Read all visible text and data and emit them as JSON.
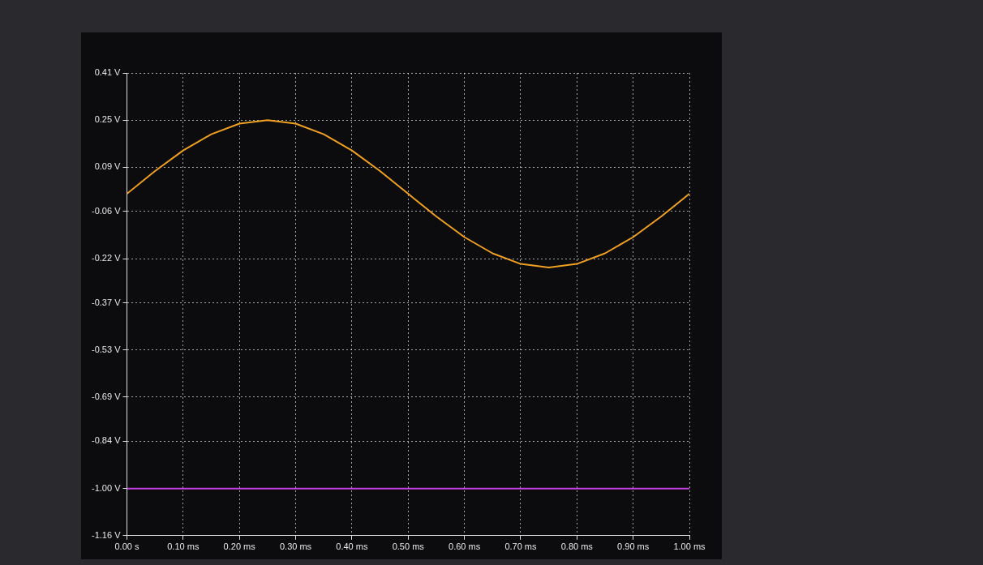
{
  "chart_data": {
    "type": "line",
    "xlim": [
      0,
      1
    ],
    "xticks": [
      {
        "value": 0,
        "label": "0.00 s"
      },
      {
        "value": 0.1,
        "label": "0.10 ms"
      },
      {
        "value": 0.2,
        "label": "0.20 ms"
      },
      {
        "value": 0.3,
        "label": "0.30 ms"
      },
      {
        "value": 0.4,
        "label": "0.40 ms"
      },
      {
        "value": 0.5,
        "label": "0.50 ms"
      },
      {
        "value": 0.6,
        "label": "0.60 ms"
      },
      {
        "value": 0.7,
        "label": "0.70 ms"
      },
      {
        "value": 0.8,
        "label": "0.80 ms"
      },
      {
        "value": 0.9,
        "label": "0.90 ms"
      },
      {
        "value": 1,
        "label": "1.00 ms"
      }
    ],
    "ylim": [
      -1.16,
      0.41
    ],
    "yticks": [
      {
        "value": 0.41,
        "label": "0.41 V"
      },
      {
        "value": 0.25,
        "label": "0.25 V"
      },
      {
        "value": 0.09,
        "label": "0.09 V"
      },
      {
        "value": -0.06,
        "label": "-0.06 V"
      },
      {
        "value": -0.22,
        "label": "-0.22 V"
      },
      {
        "value": -0.37,
        "label": "-0.37 V"
      },
      {
        "value": -0.53,
        "label": "-0.53 V"
      },
      {
        "value": -0.69,
        "label": "-0.69 V"
      },
      {
        "value": -0.84,
        "label": "-0.84 V"
      },
      {
        "value": -1.0,
        "label": "-1.00 V"
      },
      {
        "value": -1.16,
        "label": "-1.16 V"
      }
    ],
    "grid": true,
    "series": [
      {
        "color": "#f0a020",
        "x": [
          0,
          0.05,
          0.1,
          0.15,
          0.2,
          0.25,
          0.3,
          0.35,
          0.4,
          0.45,
          0.5,
          0.55,
          0.6,
          0.65,
          0.7,
          0.75,
          0.8,
          0.85,
          0.9,
          0.95,
          1
        ],
        "values": [
          0,
          0.077,
          0.147,
          0.202,
          0.238,
          0.25,
          0.238,
          0.202,
          0.147,
          0.077,
          0,
          -0.077,
          -0.147,
          -0.202,
          -0.238,
          -0.25,
          -0.238,
          -0.202,
          -0.147,
          -0.077,
          0
        ]
      },
      {
        "color": "#c040e0",
        "x": [
          0,
          1
        ],
        "values": [
          -1,
          -1
        ]
      }
    ]
  }
}
